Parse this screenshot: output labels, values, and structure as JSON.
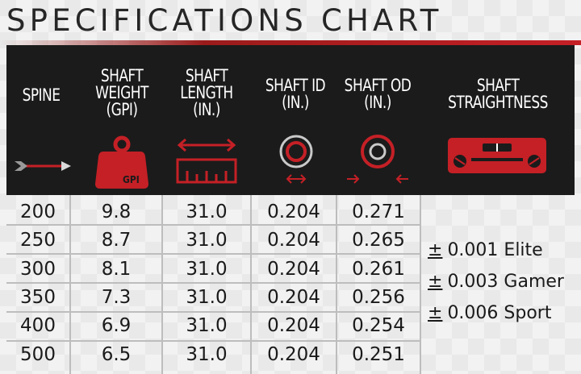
{
  "title": "SPECIFICATIONS CHART",
  "colors": {
    "accent": "#c42026",
    "header_bg": "#1b1b1b"
  },
  "headers": {
    "spine": "SPINE",
    "weight": "SHAFT\nWEIGHT\n(GPI)",
    "length": "SHAFT\nLENGTH\n(IN.)",
    "id": "SHAFT ID\n(IN.)",
    "od": "SHAFT OD\n(IN.)",
    "straightness": "SHAFT\nSTRAIGHTNESS"
  },
  "icons": {
    "spine": "arrow-icon",
    "weight": "weight-icon",
    "weight_label": "GPI",
    "length": "ruler-icon",
    "id": "inner-diameter-icon",
    "od": "outer-diameter-icon",
    "straightness": "level-icon"
  },
  "rows": [
    {
      "spine": "200",
      "weight": "9.8",
      "length": "31.0",
      "id": "0.204",
      "od": "0.271"
    },
    {
      "spine": "250",
      "weight": "8.7",
      "length": "31.0",
      "id": "0.204",
      "od": "0.265"
    },
    {
      "spine": "300",
      "weight": "8.1",
      "length": "31.0",
      "id": "0.204",
      "od": "0.261"
    },
    {
      "spine": "350",
      "weight": "7.3",
      "length": "31.0",
      "id": "0.204",
      "od": "0.256"
    },
    {
      "spine": "400",
      "weight": "6.9",
      "length": "31.0",
      "id": "0.204",
      "od": "0.254"
    },
    {
      "spine": "500",
      "weight": "6.5",
      "length": "31.0",
      "id": "0.204",
      "od": "0.251"
    }
  ],
  "straightness": [
    {
      "symbol": "±",
      "value": "0.001 Elite"
    },
    {
      "symbol": "±",
      "value": "0.003 Gamer"
    },
    {
      "symbol": "±",
      "value": "0.006 Sport"
    }
  ]
}
